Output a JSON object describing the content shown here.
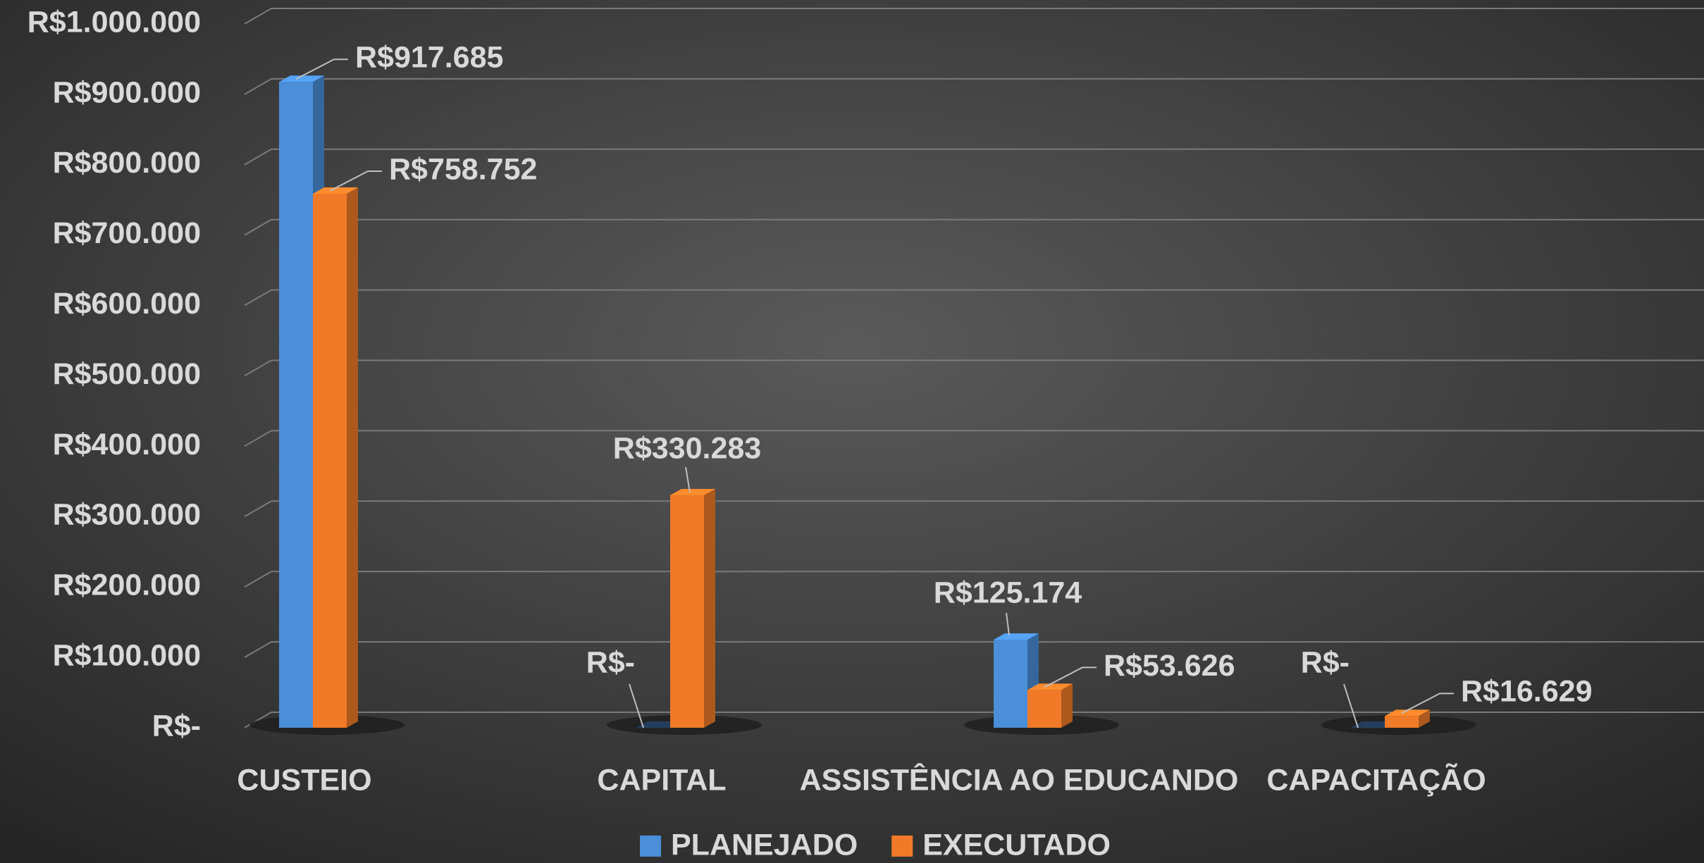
{
  "chart_data": {
    "type": "bar3d",
    "categories": [
      "CUSTEIO",
      "CAPITAL",
      "ASSISTÊNCIA AO EDUCANDO",
      "CAPACITAÇÃO"
    ],
    "series": [
      {
        "name": "PLANEJADO",
        "color": "#4a8fd8",
        "values": [
          917685,
          0,
          125174,
          0
        ],
        "value_labels": [
          "R$917.685",
          "R$-",
          "R$125.174",
          "R$-"
        ]
      },
      {
        "name": "EXECUTADO",
        "color": "#f07a28",
        "values": [
          758752,
          330283,
          53626,
          16629
        ],
        "value_labels": [
          "R$758.752",
          "R$330.283",
          "R$53.626",
          "R$16.629"
        ]
      }
    ],
    "ylim": [
      0,
      1000000
    ],
    "yticks": [
      {
        "value": 0,
        "label": "R$-"
      },
      {
        "value": 100000,
        "label": "R$100.000"
      },
      {
        "value": 200000,
        "label": "R$200.000"
      },
      {
        "value": 300000,
        "label": "R$300.000"
      },
      {
        "value": 400000,
        "label": "R$400.000"
      },
      {
        "value": 500000,
        "label": "R$500.000"
      },
      {
        "value": 600000,
        "label": "R$600.000"
      },
      {
        "value": 700000,
        "label": "R$700.000"
      },
      {
        "value": 800000,
        "label": "R$800.000"
      },
      {
        "value": 900000,
        "label": "R$900.000"
      },
      {
        "value": 1000000,
        "label": "R$1.000.000"
      }
    ],
    "grid": true,
    "legend": "bottom"
  }
}
